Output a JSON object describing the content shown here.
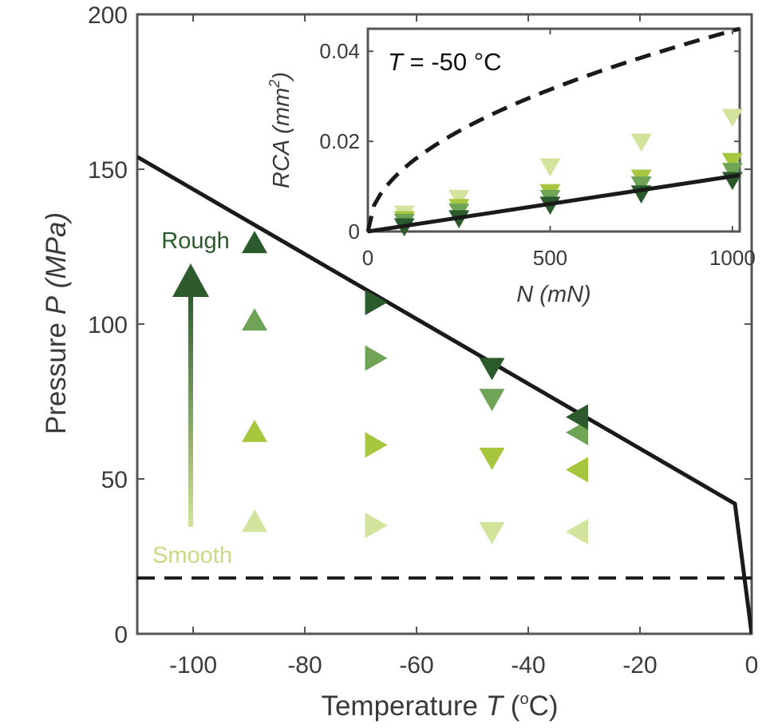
{
  "chart_data": [
    {
      "type": "scatter",
      "xlabel": {
        "text": "Temperature",
        "var": "T",
        "unit_open": " (",
        "unit_deg": "o",
        "unit_rest": "C)"
      },
      "ylabel": {
        "text": "Pressure",
        "var": "P",
        "unit": "(MPa)"
      },
      "xlim": [
        -110,
        0
      ],
      "ylim": [
        0,
        200
      ],
      "xticks": [
        -100,
        -80,
        -60,
        -40,
        -20,
        0
      ],
      "yticks": [
        0,
        50,
        100,
        150,
        200
      ],
      "annotations": {
        "rough": "Rough",
        "smooth": "Smooth"
      },
      "colors": {
        "shade1": "#d2e39b",
        "shade2": "#a6c73d",
        "shade3": "#6fa356",
        "shade4": "#2b5a2d",
        "line": "#1a1a1a",
        "axis": "#555555"
      },
      "boundary_line": {
        "style": "solid",
        "x": [
          -110,
          -3,
          0
        ],
        "y": [
          154,
          42,
          0
        ]
      },
      "threshold_line": {
        "style": "dashed",
        "x": [
          -110,
          0
        ],
        "y": [
          18,
          18
        ]
      },
      "series": [
        {
          "marker": "triangle-up",
          "points": [
            {
              "x": -89,
              "y": 36,
              "shade": 1
            },
            {
              "x": -89,
              "y": 65,
              "shade": 2
            },
            {
              "x": -89,
              "y": 101,
              "shade": 3
            },
            {
              "x": -89,
              "y": 126,
              "shade": 4
            }
          ]
        },
        {
          "marker": "triangle-right",
          "points": [
            {
              "x": -67.5,
              "y": 35,
              "shade": 1
            },
            {
              "x": -67.5,
              "y": 61,
              "shade": 2
            },
            {
              "x": -67.5,
              "y": 89,
              "shade": 3
            },
            {
              "x": -67.5,
              "y": 107,
              "shade": 4
            }
          ]
        },
        {
          "marker": "triangle-down",
          "points": [
            {
              "x": -46.5,
              "y": 33,
              "shade": 1
            },
            {
              "x": -46.5,
              "y": 57,
              "shade": 2
            },
            {
              "x": -46.5,
              "y": 76,
              "shade": 3
            },
            {
              "x": -46.5,
              "y": 86,
              "shade": 4
            }
          ]
        },
        {
          "marker": "triangle-left",
          "points": [
            {
              "x": -31,
              "y": 33,
              "shade": 1
            },
            {
              "x": -31,
              "y": 53,
              "shade": 2
            },
            {
              "x": -31,
              "y": 65,
              "shade": 3
            },
            {
              "x": -31,
              "y": 70,
              "shade": 4
            }
          ]
        }
      ]
    },
    {
      "type": "scatter",
      "title": {
        "var": "T",
        "text": " = -50",
        "unit": "°C"
      },
      "xlabel": {
        "var": "N",
        "unit": "(mN)"
      },
      "ylabel": {
        "var": "RCA",
        "unit_open": "(mm",
        "unit_sup": "2",
        "unit_close": ")"
      },
      "xlim": [
        0,
        1020
      ],
      "ylim": [
        0,
        0.045
      ],
      "xticks": [
        0,
        500,
        1000
      ],
      "yticks": [
        0,
        0.02,
        0.04
      ],
      "ytick_labels": [
        "0",
        "0.02",
        "0.04"
      ],
      "marker": "triangle-down",
      "fit_line": {
        "style": "solid",
        "x": [
          0,
          1020
        ],
        "y": [
          0,
          0.0125
        ]
      },
      "upper_curve": {
        "style": "dashed",
        "exponent": 0.5,
        "y_at_1020": 0.045
      },
      "series": [
        {
          "shade": 1,
          "points": [
            [
              100,
              0.004
            ],
            [
              250,
              0.0075
            ],
            [
              500,
              0.0145
            ],
            [
              750,
              0.02
            ],
            [
              1000,
              0.0255
            ]
          ]
        },
        {
          "shade": 2,
          "points": [
            [
              100,
              0.0028
            ],
            [
              250,
              0.0055
            ],
            [
              500,
              0.0088
            ],
            [
              750,
              0.012
            ],
            [
              1000,
              0.0157
            ]
          ]
        },
        {
          "shade": 3,
          "points": [
            [
              100,
              0.0022
            ],
            [
              250,
              0.0045
            ],
            [
              500,
              0.0075
            ],
            [
              750,
              0.0105
            ],
            [
              1000,
              0.0135
            ]
          ]
        },
        {
          "shade": 4,
          "points": [
            [
              100,
              0.0012
            ],
            [
              250,
              0.003
            ],
            [
              500,
              0.006
            ],
            [
              750,
              0.0085
            ],
            [
              1000,
              0.0115
            ]
          ]
        }
      ]
    }
  ]
}
